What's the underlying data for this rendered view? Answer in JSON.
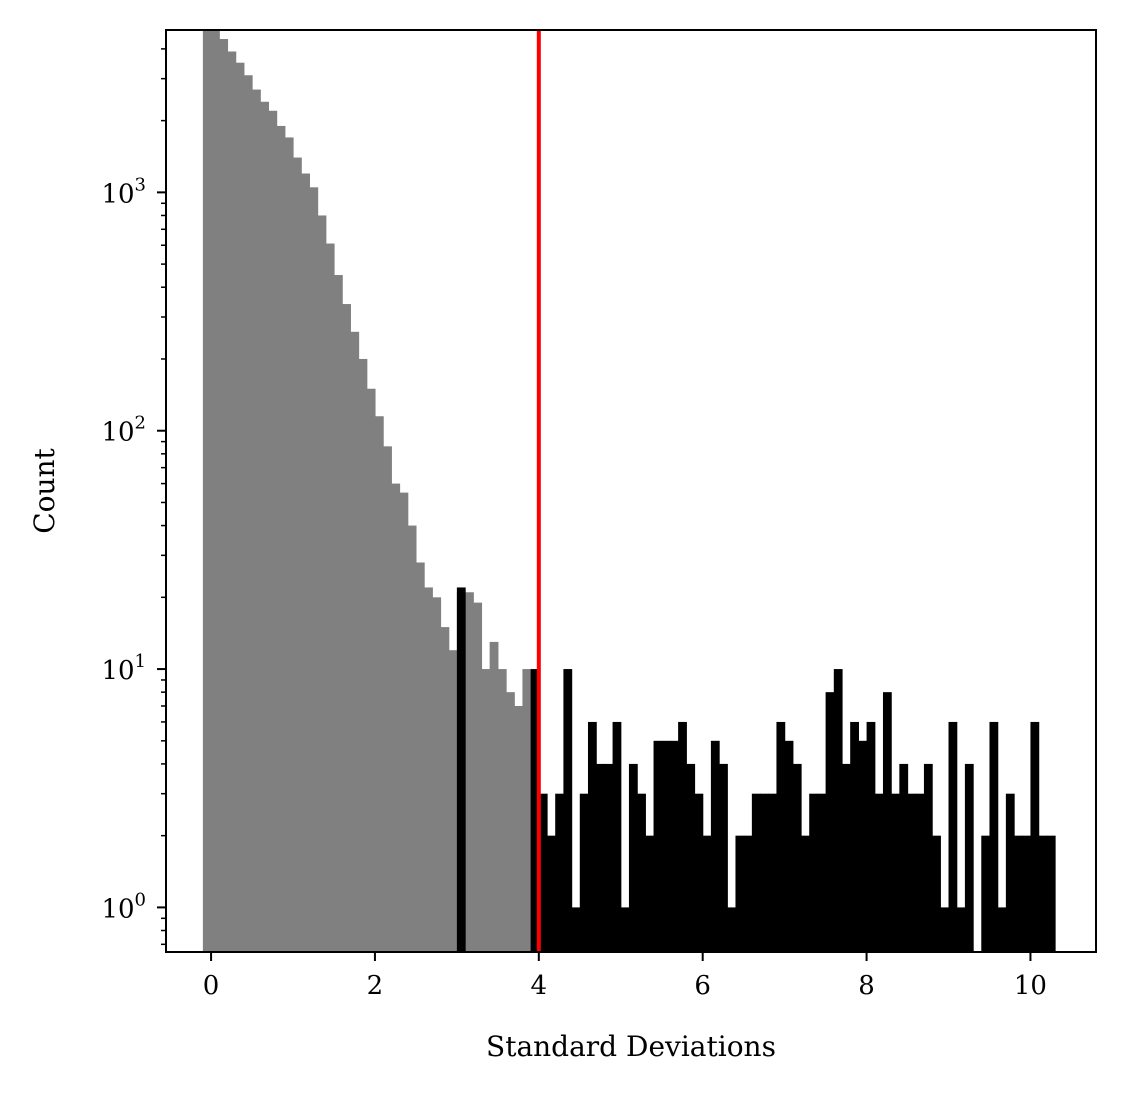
{
  "chart_data": {
    "type": "bar",
    "title": "",
    "xlabel": "Standard Deviations",
    "ylabel": "Count",
    "yscale": "log",
    "xlim": [
      -0.55,
      10.8
    ],
    "ylim": [
      0.65,
      4800
    ],
    "grid": false,
    "bin_width": 0.1,
    "threshold": 4,
    "threshold_color": "#ff0000",
    "colors": {
      "below_threshold": "#808080",
      "above_threshold": "#000000"
    },
    "x_ticks": [
      {
        "value": 0,
        "label": "0"
      },
      {
        "value": 2,
        "label": "2"
      },
      {
        "value": 4,
        "label": "4"
      },
      {
        "value": 6,
        "label": "6"
      },
      {
        "value": 8,
        "label": "8"
      },
      {
        "value": 10,
        "label": "10"
      }
    ],
    "y_ticks": [
      {
        "value": 1,
        "base": "10",
        "exp": "0"
      },
      {
        "value": 10,
        "base": "10",
        "exp": "1"
      },
      {
        "value": 100,
        "base": "10",
        "exp": "2"
      },
      {
        "value": 1000,
        "base": "10",
        "exp": "3"
      }
    ],
    "series": [
      {
        "color": "#808080",
        "bins": [
          [
            -0.05,
            5000
          ],
          [
            0.05,
            5000
          ],
          [
            0.15,
            4400
          ],
          [
            0.25,
            3900
          ],
          [
            0.35,
            3500
          ],
          [
            0.45,
            3100
          ],
          [
            0.55,
            2700
          ],
          [
            0.65,
            2400
          ],
          [
            0.75,
            2200
          ],
          [
            0.85,
            1900
          ],
          [
            0.95,
            1700
          ],
          [
            1.05,
            1400
          ],
          [
            1.15,
            1200
          ],
          [
            1.25,
            1050
          ],
          [
            1.35,
            800
          ],
          [
            1.45,
            610
          ],
          [
            1.55,
            450
          ],
          [
            1.65,
            340
          ],
          [
            1.75,
            260
          ],
          [
            1.85,
            200
          ],
          [
            1.95,
            150
          ],
          [
            2.05,
            115
          ],
          [
            2.15,
            86
          ],
          [
            2.25,
            60
          ],
          [
            2.35,
            55
          ],
          [
            2.45,
            40
          ],
          [
            2.55,
            28
          ],
          [
            2.65,
            22
          ],
          [
            2.75,
            20
          ],
          [
            2.85,
            15
          ],
          [
            2.95,
            12
          ],
          [
            3.05,
            21
          ],
          [
            3.15,
            21
          ],
          [
            3.25,
            19
          ],
          [
            3.35,
            10
          ],
          [
            3.45,
            13
          ],
          [
            3.55,
            10
          ],
          [
            3.65,
            8
          ],
          [
            3.75,
            7
          ],
          [
            3.85,
            10
          ],
          [
            3.95,
            9
          ]
        ]
      },
      {
        "color": "#000000",
        "bins": [
          [
            3.05,
            22
          ],
          [
            3.95,
            10
          ],
          [
            4.05,
            3
          ],
          [
            4.15,
            2
          ],
          [
            4.25,
            3
          ],
          [
            4.35,
            10
          ],
          [
            4.45,
            1
          ],
          [
            4.55,
            3
          ],
          [
            4.65,
            6
          ],
          [
            4.75,
            4
          ],
          [
            4.85,
            4
          ],
          [
            4.95,
            6
          ],
          [
            5.05,
            1
          ],
          [
            5.15,
            4
          ],
          [
            5.25,
            3
          ],
          [
            5.35,
            2
          ],
          [
            5.45,
            5
          ],
          [
            5.55,
            5
          ],
          [
            5.65,
            5
          ],
          [
            5.75,
            6
          ],
          [
            5.85,
            4
          ],
          [
            5.95,
            3
          ],
          [
            6.05,
            2
          ],
          [
            6.15,
            5
          ],
          [
            6.25,
            4
          ],
          [
            6.35,
            1
          ],
          [
            6.45,
            2
          ],
          [
            6.55,
            2
          ],
          [
            6.65,
            3
          ],
          [
            6.75,
            3
          ],
          [
            6.85,
            3
          ],
          [
            6.95,
            6
          ],
          [
            7.05,
            5
          ],
          [
            7.15,
            4
          ],
          [
            7.25,
            2
          ],
          [
            7.35,
            3
          ],
          [
            7.45,
            3
          ],
          [
            7.55,
            8
          ],
          [
            7.65,
            10
          ],
          [
            7.75,
            4
          ],
          [
            7.85,
            6
          ],
          [
            7.95,
            5
          ],
          [
            8.05,
            6
          ],
          [
            8.15,
            3
          ],
          [
            8.25,
            8
          ],
          [
            8.35,
            3
          ],
          [
            8.45,
            4
          ],
          [
            8.55,
            3
          ],
          [
            8.65,
            3
          ],
          [
            8.75,
            4
          ],
          [
            8.85,
            2
          ],
          [
            8.95,
            1
          ],
          [
            9.05,
            6
          ],
          [
            9.15,
            1
          ],
          [
            9.25,
            4
          ],
          [
            9.35,
            0.5
          ],
          [
            9.45,
            2
          ],
          [
            9.55,
            6
          ],
          [
            9.65,
            1
          ],
          [
            9.75,
            3
          ],
          [
            9.85,
            2
          ],
          [
            9.95,
            2
          ],
          [
            10.05,
            6
          ],
          [
            10.15,
            2
          ],
          [
            10.25,
            2
          ]
        ]
      }
    ]
  }
}
